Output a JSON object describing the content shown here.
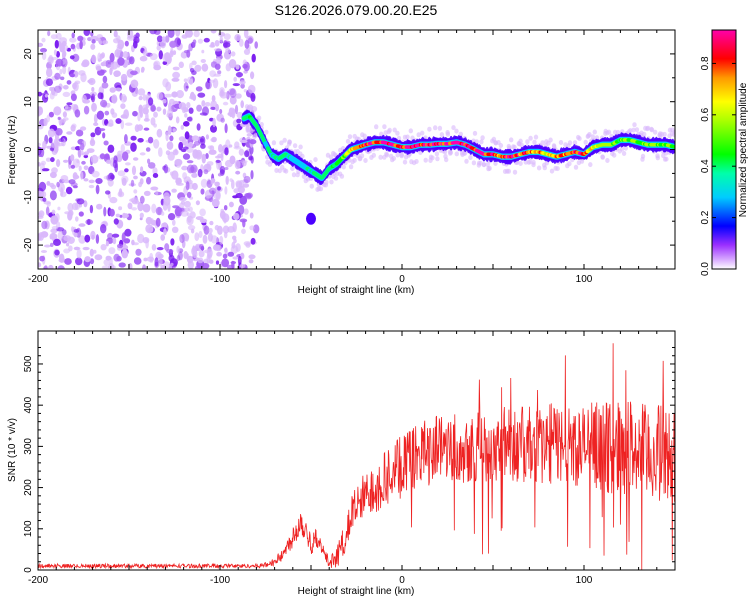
{
  "title": "S126.2026.079.00.20.E25",
  "chart_data": [
    {
      "type": "heatmap",
      "name": "spectrogram",
      "xlabel": "Height of straight line (km)",
      "ylabel": "Frequency (Hz)",
      "xlim": [
        -200,
        150
      ],
      "ylim": [
        -25,
        25
      ],
      "xticks": [
        -200,
        -100,
        0,
        100
      ],
      "yticks": [
        -20,
        -10,
        0,
        10,
        20
      ],
      "noise_region_x": [
        -200,
        -85
      ],
      "signal_track": {
        "x": [
          -87,
          -84,
          -80,
          -76,
          -72,
          -68,
          -64,
          -60,
          -56,
          -52,
          -48,
          -44,
          -40,
          -36,
          -32,
          -28,
          -24,
          -20,
          -15,
          -10,
          -5,
          0,
          5,
          10,
          15,
          20,
          25,
          30,
          35,
          40,
          45,
          50,
          55,
          60,
          65,
          70,
          75,
          80,
          85,
          90,
          95,
          100,
          105,
          110,
          115,
          120,
          125,
          130,
          135,
          140,
          145,
          150
        ],
        "freq": [
          6.5,
          7,
          5,
          2,
          -1,
          -2,
          -1,
          -2,
          -3,
          -4,
          -5,
          -6,
          -4,
          -3,
          -1.5,
          0,
          0.5,
          1,
          1.5,
          1.5,
          1,
          0.5,
          0.5,
          1,
          1,
          1.2,
          1.2,
          1.5,
          1,
          0,
          -1,
          -1,
          -1.5,
          -1.5,
          -1,
          -0.5,
          -0.5,
          -1,
          -1.5,
          -1,
          -0.5,
          -1,
          0.5,
          1,
          1,
          2,
          2,
          1.5,
          1,
          1,
          1,
          0.5
        ],
        "amplitude": [
          0.3,
          0.35,
          0.3,
          0.3,
          0.25,
          0.3,
          0.3,
          0.25,
          0.25,
          0.25,
          0.3,
          0.3,
          0.35,
          0.4,
          0.5,
          0.6,
          0.7,
          0.75,
          0.8,
          0.85,
          0.85,
          0.8,
          0.85,
          0.85,
          0.85,
          0.8,
          0.8,
          0.9,
          0.85,
          0.8,
          0.8,
          0.75,
          0.75,
          0.8,
          0.75,
          0.7,
          0.7,
          0.65,
          0.7,
          0.7,
          0.75,
          0.8,
          0.55,
          0.5,
          0.5,
          0.45,
          0.5,
          0.45,
          0.45,
          0.5,
          0.45,
          0.45
        ]
      },
      "secondary_blob": {
        "x": -50,
        "freq": -14.5
      },
      "colorbar": {
        "label": "Normalized spectral amplitude",
        "range": [
          0,
          0.93
        ],
        "ticks": [
          0.0,
          0.2,
          0.4,
          0.6,
          0.8
        ],
        "tick_labels": [
          "0.0",
          "0.2",
          "0.4",
          "0.6",
          "0.8"
        ],
        "colormap": [
          "#ffffff",
          "#9b30ff",
          "#0000ff",
          "#00e5ff",
          "#00ff00",
          "#ffff00",
          "#ff8000",
          "#ff0000",
          "#ff00ff"
        ]
      }
    },
    {
      "type": "line",
      "name": "snr",
      "xlabel": "Height of straight line (km)",
      "ylabel": "SNR (10 * v/v)",
      "xlim": [
        -200,
        150
      ],
      "ylim": [
        0,
        580
      ],
      "xticks": [
        -200,
        -100,
        0,
        100
      ],
      "yticks": [
        0,
        100,
        200,
        300,
        400,
        500
      ],
      "color": "#ee2222",
      "series": [
        {
          "name": "SNR",
          "x": [
            -200,
            -180,
            -160,
            -140,
            -120,
            -100,
            -90,
            -80,
            -75,
            -70,
            -65,
            -60,
            -57,
            -55,
            -52,
            -50,
            -47,
            -45,
            -42,
            -40,
            -37,
            -35,
            -32,
            -30,
            -28,
            -25,
            -22,
            -20,
            -15,
            -10,
            -5,
            0,
            5,
            10,
            15,
            20,
            25,
            30,
            35,
            40,
            45,
            50,
            55,
            60,
            65,
            70,
            75,
            80,
            85,
            90,
            95,
            100,
            105,
            110,
            115,
            120,
            125,
            130,
            135,
            140,
            145,
            150
          ],
          "mean": [
            10,
            10,
            10,
            10,
            10,
            10,
            10,
            10,
            12,
            20,
            40,
            80,
            110,
            120,
            90,
            60,
            80,
            60,
            30,
            20,
            25,
            40,
            70,
            100,
            130,
            150,
            170,
            180,
            200,
            220,
            240,
            250,
            265,
            280,
            290,
            300,
            305,
            300,
            300,
            305,
            300,
            300,
            310,
            315,
            300,
            305,
            300,
            305,
            310,
            305,
            300,
            300,
            305,
            300,
            295,
            300,
            300,
            290,
            280,
            285,
            280,
            280
          ],
          "noise": [
            5,
            5,
            5,
            5,
            5,
            5,
            5,
            5,
            6,
            10,
            15,
            25,
            35,
            40,
            30,
            25,
            25,
            20,
            15,
            15,
            20,
            30,
            35,
            45,
            50,
            55,
            60,
            60,
            65,
            70,
            75,
            75,
            80,
            80,
            85,
            85,
            85,
            90,
            90,
            90,
            90,
            90,
            90,
            95,
            95,
            95,
            95,
            100,
            100,
            100,
            100,
            100,
            105,
            110,
            110,
            115,
            120,
            120,
            120,
            120,
            120,
            120
          ]
        }
      ]
    }
  ]
}
